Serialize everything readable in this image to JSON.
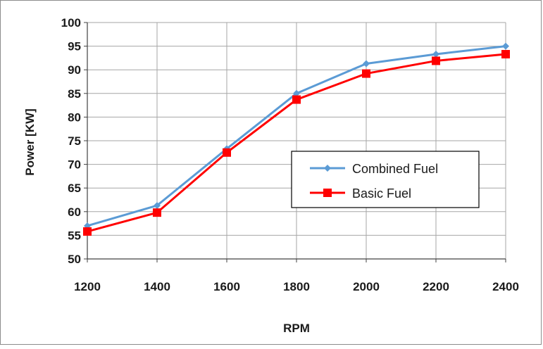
{
  "chart_data": {
    "type": "line",
    "title": "",
    "xlabel": "RPM",
    "ylabel": "Power [KW]",
    "x": [
      1200,
      1400,
      1600,
      1800,
      2000,
      2200,
      2400
    ],
    "ylim": [
      50,
      100
    ],
    "yticks": [
      50,
      55,
      60,
      65,
      70,
      75,
      80,
      85,
      90,
      95,
      100
    ],
    "grid": true,
    "legend_position": "center-right",
    "series": [
      {
        "name": "Combined Fuel",
        "color": "#5b9bd5",
        "marker": "diamond",
        "values": [
          57.0,
          61.3,
          73.3,
          85.0,
          91.3,
          93.3,
          95.0
        ]
      },
      {
        "name": "Basic Fuel",
        "color": "#ff0000",
        "marker": "square",
        "values": [
          55.8,
          59.8,
          72.5,
          83.7,
          89.2,
          91.9,
          93.3
        ]
      }
    ]
  }
}
